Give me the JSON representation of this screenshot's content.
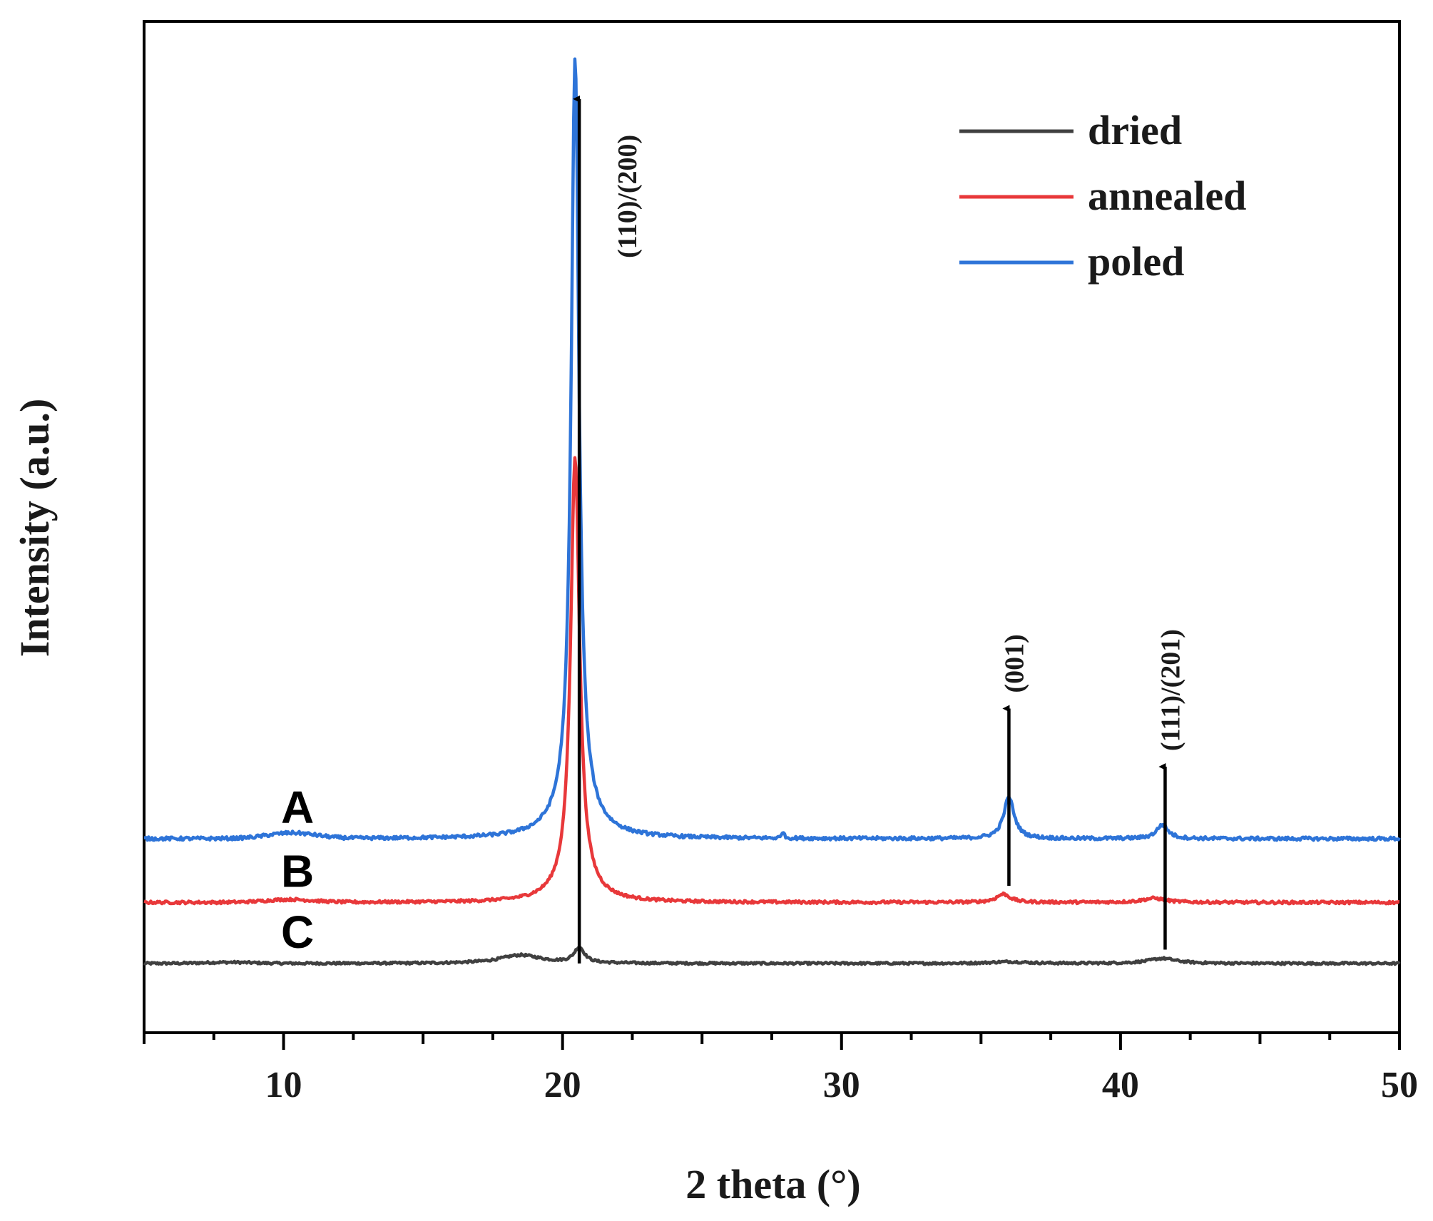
{
  "chart_data": {
    "type": "line",
    "title": "",
    "xlabel": "2 theta (°)",
    "ylabel": "Intensity (a.u.)",
    "xlim": [
      5,
      50
    ],
    "ylim": [
      -0.25,
      3.4
    ],
    "xticks": [
      10,
      20,
      30,
      40,
      50
    ],
    "grid": false,
    "legend_position": "top-right",
    "series": [
      {
        "name": "dried",
        "letter": "C",
        "color": "#404040",
        "baseline": 0.0,
        "noise": 0.004,
        "bump": [
          8,
          0.004
        ],
        "peaks": [
          {
            "x": 18.5,
            "h": 0.03,
            "w": 1.8
          },
          {
            "x": 20.6,
            "h": 0.055,
            "w": 0.45
          },
          {
            "x": 41.5,
            "h": 0.018,
            "w": 1.2
          },
          {
            "x": 36.0,
            "h": 0.006,
            "w": 1.5
          }
        ]
      },
      {
        "name": "annealed",
        "letter": "B",
        "color": "#e8383a",
        "baseline": 0.22,
        "noise": 0.005,
        "bump": [
          10.2,
          0.01
        ],
        "peaks": [
          {
            "x": 20.45,
            "h": 1.55,
            "w": 0.38
          },
          {
            "x": 20.45,
            "h": 0.06,
            "w": 1.5
          },
          {
            "x": 35.8,
            "h": 0.03,
            "w": 0.6
          },
          {
            "x": 41.2,
            "h": 0.015,
            "w": 1.0
          }
        ]
      },
      {
        "name": "poled",
        "letter": "A",
        "color": "#2e74d8",
        "baseline": 0.45,
        "noise": 0.006,
        "bump": [
          10.3,
          0.02
        ],
        "peaks": [
          {
            "x": 20.45,
            "h": 2.73,
            "w": 0.33
          },
          {
            "x": 20.45,
            "h": 0.1,
            "w": 1.6
          },
          {
            "x": 36.0,
            "h": 0.15,
            "w": 0.45
          },
          {
            "x": 41.5,
            "h": 0.05,
            "w": 0.5
          },
          {
            "x": 27.9,
            "h": 0.03,
            "w": 0.08
          }
        ]
      }
    ],
    "annotations": [
      {
        "label": "(110)/(200)",
        "x": 20.6,
        "y_from": 0.0,
        "y_to": 3.12
      },
      {
        "label": "(001)",
        "x": 36.0,
        "y_from": 0.28,
        "y_to": 0.92
      },
      {
        "label": "(111)/(201)",
        "x": 41.6,
        "y_from": 0.05,
        "y_to": 0.71
      }
    ]
  }
}
